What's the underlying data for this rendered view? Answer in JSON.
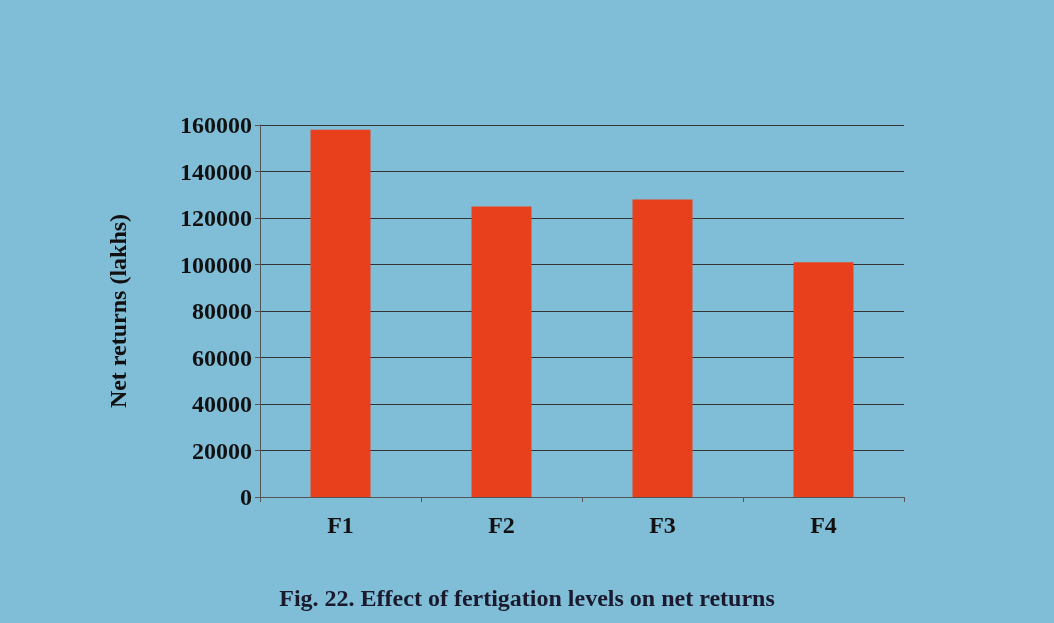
{
  "chart_data": {
    "type": "bar",
    "title": "Fig. 22. Effect of fertigation levels on net returns",
    "ylabel": "Net returns (lakhs)",
    "categories": [
      "F1",
      "F2",
      "F3",
      "F4"
    ],
    "values": [
      158000,
      125000,
      128000,
      101000
    ],
    "color": "#e8401c",
    "ylim": [
      0,
      160000
    ],
    "yticks": [
      0,
      20000,
      40000,
      60000,
      80000,
      100000,
      120000,
      140000,
      160000
    ],
    "grid": true
  }
}
